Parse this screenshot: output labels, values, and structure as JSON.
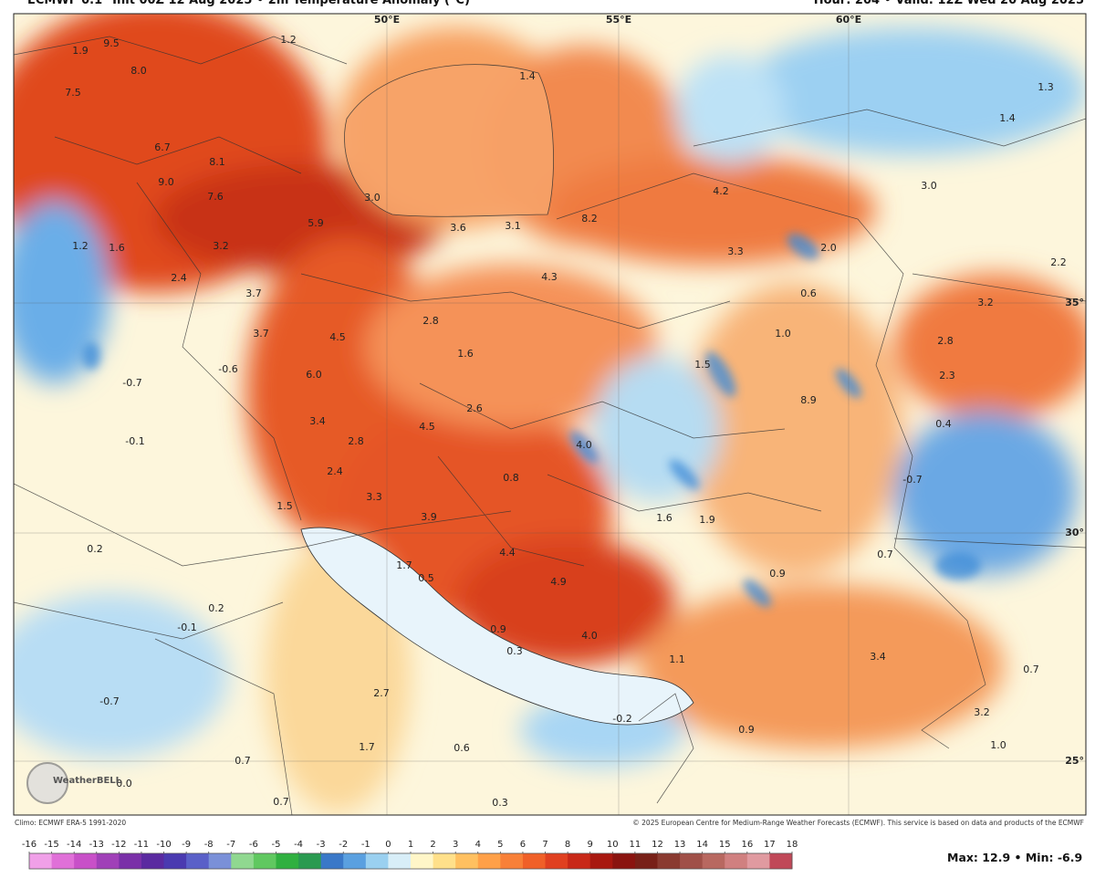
{
  "header": {
    "left": "ECMWF 0.1° Init 00Z 12 Aug 2025 • 2m Temperature Anomaly (°C)",
    "right": "Hour: 204 • Valid: 12Z Wed 20 Aug 2025"
  },
  "geo_labels": [
    "50°E",
    "55°E",
    "60°E",
    "35°",
    "30°",
    "25°"
  ],
  "map_labels": [
    "9.5",
    "1.9",
    "1.2",
    "8.0",
    "7.5",
    "6.7",
    "8.1",
    "9.0",
    "7.6",
    "1.2",
    "1.6",
    "3.2",
    "2.4",
    "3.0",
    "5.9",
    "3.6",
    "3.1",
    "8.2",
    "4.2",
    "3.0",
    "1.4",
    "1.3",
    "1.4",
    "3.3",
    "2.0",
    "0.6",
    "2.2",
    "3.2",
    "4.3",
    "3.7",
    "3.7",
    "2.8",
    "4.5",
    "1.6",
    "1.0",
    "1.5",
    "2.8",
    "2.3",
    "-0.6",
    "-0.7",
    "6.0",
    "8.9",
    "2.6",
    "3.4",
    "4.5",
    "0.4",
    "4.0",
    "-0.1",
    "2.8",
    "2.4",
    "0.8",
    "-0.7",
    "1.5",
    "3.3",
    "3.9",
    "1.6",
    "1.9",
    "0.2",
    "0.7",
    "1.7",
    "0.5",
    "4.4",
    "4.9",
    "0.9",
    "0.2",
    "-0.1",
    "0.9",
    "4.0",
    "0.3",
    "3.4",
    "0.7",
    "1.1",
    "2.7",
    "-0.7",
    "-0.2",
    "3.2",
    "0.9",
    "1.7",
    "0.6",
    "0.7",
    "1.0",
    "0.0",
    "0.7",
    "0.3"
  ],
  "logo": "WeatherBELL",
  "credits": {
    "left": "Climo: ECMWF ERA-5 1991-2020",
    "right": "© 2025 European Centre for Medium-Range Weather Forecasts (ECMWF). This service is based on data and products of the ECMWF"
  },
  "colorbar": {
    "ticks": [
      -16,
      -15,
      -14,
      -13,
      -12,
      -11,
      -10,
      -9,
      -8,
      -7,
      -6,
      -5,
      -4,
      -3,
      -2,
      -1,
      0,
      1,
      2,
      3,
      4,
      5,
      6,
      7,
      8,
      9,
      10,
      11,
      12,
      13,
      14,
      15,
      16,
      17,
      18
    ],
    "colors": [
      "#f0a0e8",
      "#e070d8",
      "#c850c8",
      "#a040b8",
      "#7a30a8",
      "#5a2aa0",
      "#4a3ab0",
      "#5a60c8",
      "#7a90d8",
      "#90d890",
      "#60c860",
      "#30b040",
      "#2a9a50",
      "#3a78c8",
      "#5aa0e0",
      "#9ad0f0",
      "#d8eef8",
      "#fff6c8",
      "#ffe08a",
      "#ffc060",
      "#ffa048",
      "#f88038",
      "#f06028",
      "#e04020",
      "#c82818",
      "#a81810",
      "#8a1410",
      "#782018",
      "#8a3a30",
      "#a05048",
      "#b86860",
      "#d08080",
      "#e09aa0",
      "#c04858"
    ]
  },
  "stats": {
    "max_label": "Max:",
    "max": 12.9,
    "sep": "•",
    "min_label": "Min:",
    "min": -6.9
  }
}
